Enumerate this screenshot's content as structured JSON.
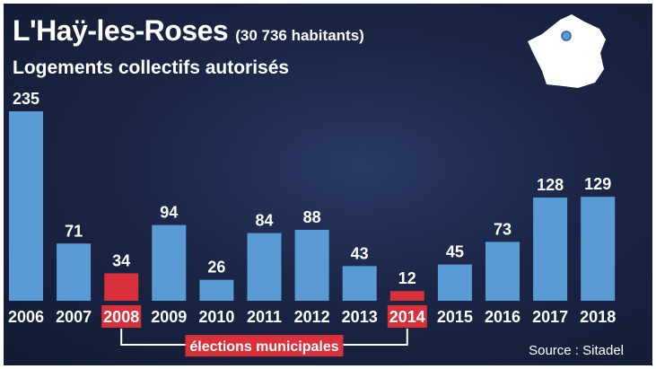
{
  "header": {
    "title": "L'Haÿ-les-Roses",
    "population": "(30 736 habitants)",
    "subtitle": "Logements collectifs autorisés"
  },
  "annotation": {
    "label": "élections municipales",
    "highlight_years": [
      "2008",
      "2014"
    ]
  },
  "source": "Source : Sitadel",
  "colors": {
    "background": "#1b2646",
    "bar": "#5b9bd5",
    "highlight": "#d9303b",
    "text": "#ffffff"
  },
  "chart_data": {
    "type": "bar",
    "title": "Logements collectifs autorisés",
    "categories": [
      "2006",
      "2007",
      "2008",
      "2009",
      "2010",
      "2011",
      "2012",
      "2013",
      "2014",
      "2015",
      "2016",
      "2017",
      "2018"
    ],
    "values": [
      235,
      71,
      34,
      94,
      26,
      84,
      88,
      43,
      12,
      45,
      73,
      128,
      129
    ],
    "highlighted": [
      "2008",
      "2014"
    ],
    "xlabel": "",
    "ylabel": "",
    "ylim": [
      0,
      235
    ],
    "grid": false,
    "legend": "none"
  }
}
